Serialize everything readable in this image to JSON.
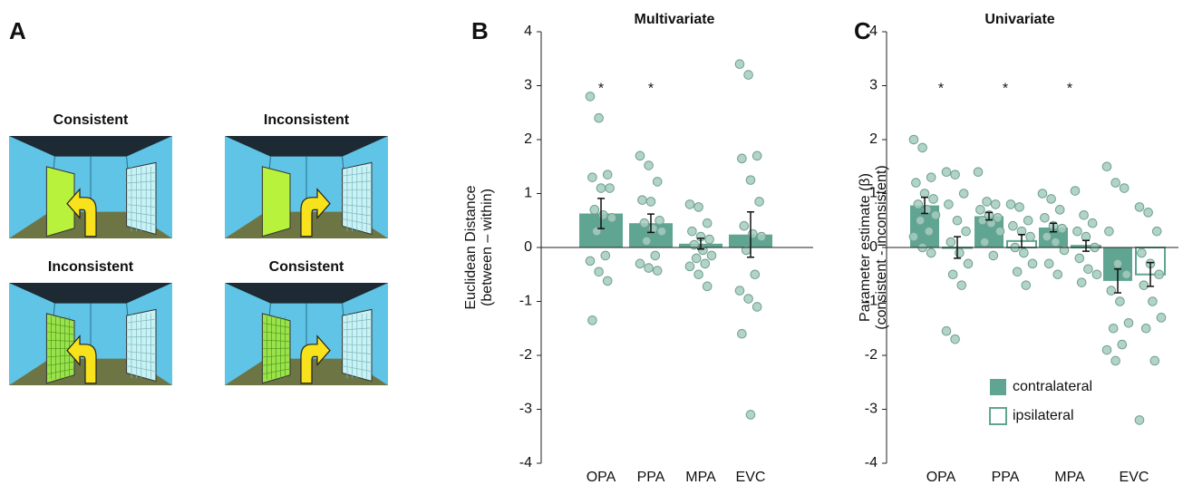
{
  "panel_a": {
    "label": "A",
    "captions": [
      "Consistent",
      "Inconsistent",
      "Inconsistent",
      "Consistent"
    ]
  },
  "chart_data": [
    {
      "type": "bar",
      "panel_label": "B",
      "title": "Multivariate",
      "ylabel": [
        "Euclidean Distance",
        "(between – within)"
      ],
      "categories": [
        "OPA",
        "PPA",
        "MPA",
        "EVC"
      ],
      "significance": [
        "*",
        "*",
        null,
        null
      ],
      "series": [
        {
          "color": "#5fa592",
          "filled": true,
          "values": [
            0.63,
            0.45,
            0.07,
            0.24
          ],
          "errors": [
            0.28,
            0.17,
            0.1,
            0.42
          ],
          "points": [
            [
              2.8,
              2.4,
              1.35,
              1.3,
              1.1,
              1.1,
              0.7,
              0.6,
              0.55,
              0.3,
              -0.15,
              -0.25,
              -0.45,
              -0.62,
              -1.35
            ],
            [
              1.7,
              1.52,
              1.22,
              0.88,
              0.85,
              0.5,
              0.45,
              0.35,
              0.3,
              0.12,
              -0.15,
              -0.3,
              -0.38,
              -0.43
            ],
            [
              0.8,
              0.75,
              0.45,
              0.3,
              0.2,
              0.15,
              0.05,
              -0.05,
              -0.15,
              -0.2,
              -0.3,
              -0.35,
              -0.5,
              -0.72
            ],
            [
              3.4,
              3.2,
              1.7,
              1.65,
              1.25,
              0.85,
              0.4,
              0.25,
              0.2,
              -0.05,
              -0.5,
              -0.8,
              -0.95,
              -1.1,
              -1.6,
              -3.1
            ]
          ]
        }
      ],
      "point_color": "#a5cdbd",
      "ylim": [
        -4,
        4
      ],
      "yticks": [
        -4,
        -3,
        -2,
        -1,
        0,
        1,
        2,
        3,
        4
      ]
    },
    {
      "type": "bar",
      "panel_label": "C",
      "title": "Univariate",
      "ylabel": [
        "Parameter estimate (β)",
        "(consistent - inconsistent)"
      ],
      "categories": [
        "OPA",
        "PPA",
        "MPA",
        "EVC"
      ],
      "significance": [
        "*",
        "*",
        "*",
        null
      ],
      "legend": "lower right",
      "series": [
        {
          "name": "contralateral",
          "color": "#5fa592",
          "filled": true,
          "values": [
            0.78,
            0.58,
            0.37,
            -0.62
          ],
          "errors": [
            0.15,
            0.07,
            0.08,
            0.22
          ],
          "points": [
            [
              2.0,
              1.85,
              1.3,
              1.2,
              1.0,
              0.9,
              0.8,
              0.7,
              0.6,
              0.5,
              0.3,
              0.2,
              0.0,
              -0.1
            ],
            [
              1.4,
              0.85,
              0.8,
              0.7,
              0.6,
              0.55,
              0.5,
              0.45,
              0.3,
              0.1,
              -0.15
            ],
            [
              1.0,
              0.9,
              0.7,
              0.55,
              0.4,
              0.35,
              0.2,
              0.1,
              -0.05,
              -0.3,
              -0.5
            ],
            [
              1.5,
              1.2,
              1.1,
              0.3,
              -0.3,
              -0.5,
              -0.8,
              -1.0,
              -1.4,
              -1.5,
              -1.8,
              -1.9,
              -2.1
            ]
          ]
        },
        {
          "name": "ipsilateral",
          "color": "#5fa592",
          "filled": false,
          "values": [
            0.0,
            0.12,
            0.03,
            -0.5
          ],
          "errors": [
            0.2,
            0.12,
            0.1,
            0.22
          ],
          "points": [
            [
              1.4,
              1.35,
              1.0,
              0.8,
              0.5,
              0.3,
              0.1,
              -0.1,
              -0.3,
              -0.5,
              -0.7,
              -1.55,
              -1.7
            ],
            [
              0.8,
              0.75,
              0.5,
              0.4,
              0.3,
              0.2,
              0.0,
              -0.1,
              -0.3,
              -0.45,
              -0.7
            ],
            [
              1.05,
              0.6,
              0.45,
              0.3,
              0.2,
              0.0,
              -0.2,
              -0.4,
              -0.5,
              -0.65
            ],
            [
              0.75,
              0.65,
              0.3,
              -0.1,
              -0.3,
              -0.5,
              -0.7,
              -1.0,
              -1.3,
              -1.5,
              -2.1,
              -3.2
            ]
          ]
        }
      ],
      "point_color": "#a5cdbd",
      "ylim": [
        -4,
        4
      ],
      "yticks": [
        -4,
        -3,
        -2,
        -1,
        0,
        1,
        2,
        3,
        4
      ]
    }
  ]
}
